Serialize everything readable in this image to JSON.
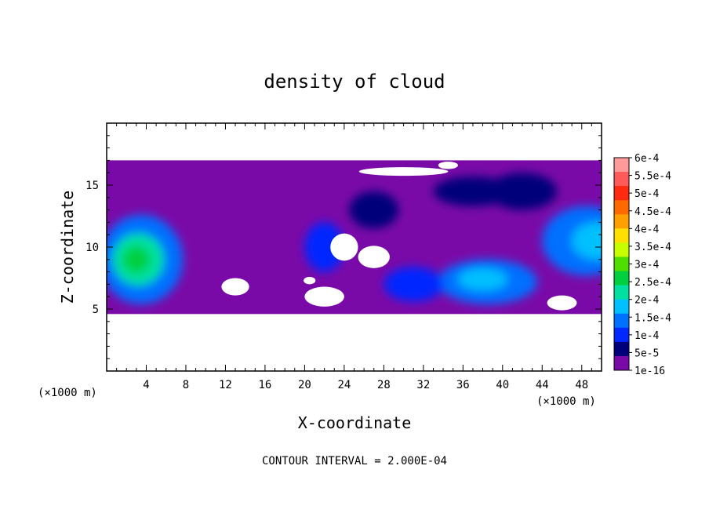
{
  "chart_data": {
    "type": "heatmap",
    "title": "density of cloud",
    "xlabel": "X-coordinate",
    "ylabel": "Z-coordinate",
    "x_unit_left": "(×1000 m)",
    "x_unit_right": "(×1000 m)",
    "footnote": "CONTOUR INTERVAL = 2.000E-04",
    "xlim": [
      0,
      50
    ],
    "ylim": [
      0,
      20
    ],
    "xticks": [
      4,
      8,
      12,
      16,
      20,
      24,
      28,
      32,
      36,
      40,
      44,
      48
    ],
    "yticks": [
      5,
      10,
      15
    ],
    "colorbar": {
      "labels": [
        "6e-4",
        "5.5e-4",
        "5e-4",
        "4.5e-4",
        "4e-4",
        "3.5e-4",
        "3e-4",
        "2.5e-4",
        "2e-4",
        "1.5e-4",
        "1e-4",
        "5e-5",
        "1e-16"
      ],
      "colors": [
        "#ff9a9a",
        "#ff5a5a",
        "#ff2a10",
        "#ff6a00",
        "#ffa000",
        "#ffe000",
        "#c8ff00",
        "#50dd00",
        "#00d040",
        "#00e0a0",
        "#00c0ff",
        "#0070ff",
        "#0028ff",
        "#00007a",
        "#7a0aa8"
      ]
    },
    "background_color": "#7a0aa8",
    "cloud_layer_z": [
      4.6,
      17.0
    ],
    "regions": [
      {
        "cx": 3.5,
        "cz": 9.0,
        "rx": 4.2,
        "rz": 3.6,
        "level": 3
      },
      {
        "cx": 3.2,
        "cz": 9.0,
        "rx": 2.6,
        "rz": 2.1,
        "level": 5
      },
      {
        "cx": 3.0,
        "cz": 9.0,
        "rx": 1.4,
        "rz": 1.1,
        "level": 6
      },
      {
        "cx": 38.5,
        "cz": 7.2,
        "rx": 5.0,
        "rz": 1.8,
        "level": 3
      },
      {
        "cx": 38.0,
        "cz": 7.4,
        "rx": 2.5,
        "rz": 0.9,
        "level": 4
      },
      {
        "cx": 22.0,
        "cz": 10.0,
        "rx": 2.0,
        "rz": 2.0,
        "level": 2
      },
      {
        "cx": 31.0,
        "cz": 7.0,
        "rx": 3.0,
        "rz": 1.4,
        "level": 2
      },
      {
        "cx": 48.5,
        "cz": 10.5,
        "rx": 4.5,
        "rz": 2.8,
        "level": 3
      },
      {
        "cx": 49.5,
        "cz": 10.5,
        "rx": 2.5,
        "rz": 1.5,
        "level": 4
      },
      {
        "cx": 42.0,
        "cz": 14.5,
        "rx": 3.5,
        "rz": 1.5,
        "level": 1
      },
      {
        "cx": 37.0,
        "cz": 14.5,
        "rx": 4.0,
        "rz": 1.2,
        "level": 1
      },
      {
        "cx": 27.0,
        "cz": 13.0,
        "rx": 2.5,
        "rz": 1.5,
        "level": 1
      }
    ],
    "gaps": [
      {
        "cx": 24.0,
        "cz": 10.0,
        "rx": 1.4,
        "rz": 1.1
      },
      {
        "cx": 27.0,
        "cz": 9.2,
        "rx": 1.6,
        "rz": 0.9
      },
      {
        "cx": 13.0,
        "cz": 6.8,
        "rx": 1.4,
        "rz": 0.7
      },
      {
        "cx": 22.0,
        "cz": 6.0,
        "rx": 2.0,
        "rz": 0.8
      },
      {
        "cx": 30.0,
        "cz": 16.1,
        "rx": 4.5,
        "rz": 0.35
      },
      {
        "cx": 34.5,
        "cz": 16.6,
        "rx": 1.0,
        "rz": 0.3
      },
      {
        "cx": 20.5,
        "cz": 7.3,
        "rx": 0.6,
        "rz": 0.3
      },
      {
        "cx": 46.0,
        "cz": 5.5,
        "rx": 1.5,
        "rz": 0.6
      }
    ]
  }
}
